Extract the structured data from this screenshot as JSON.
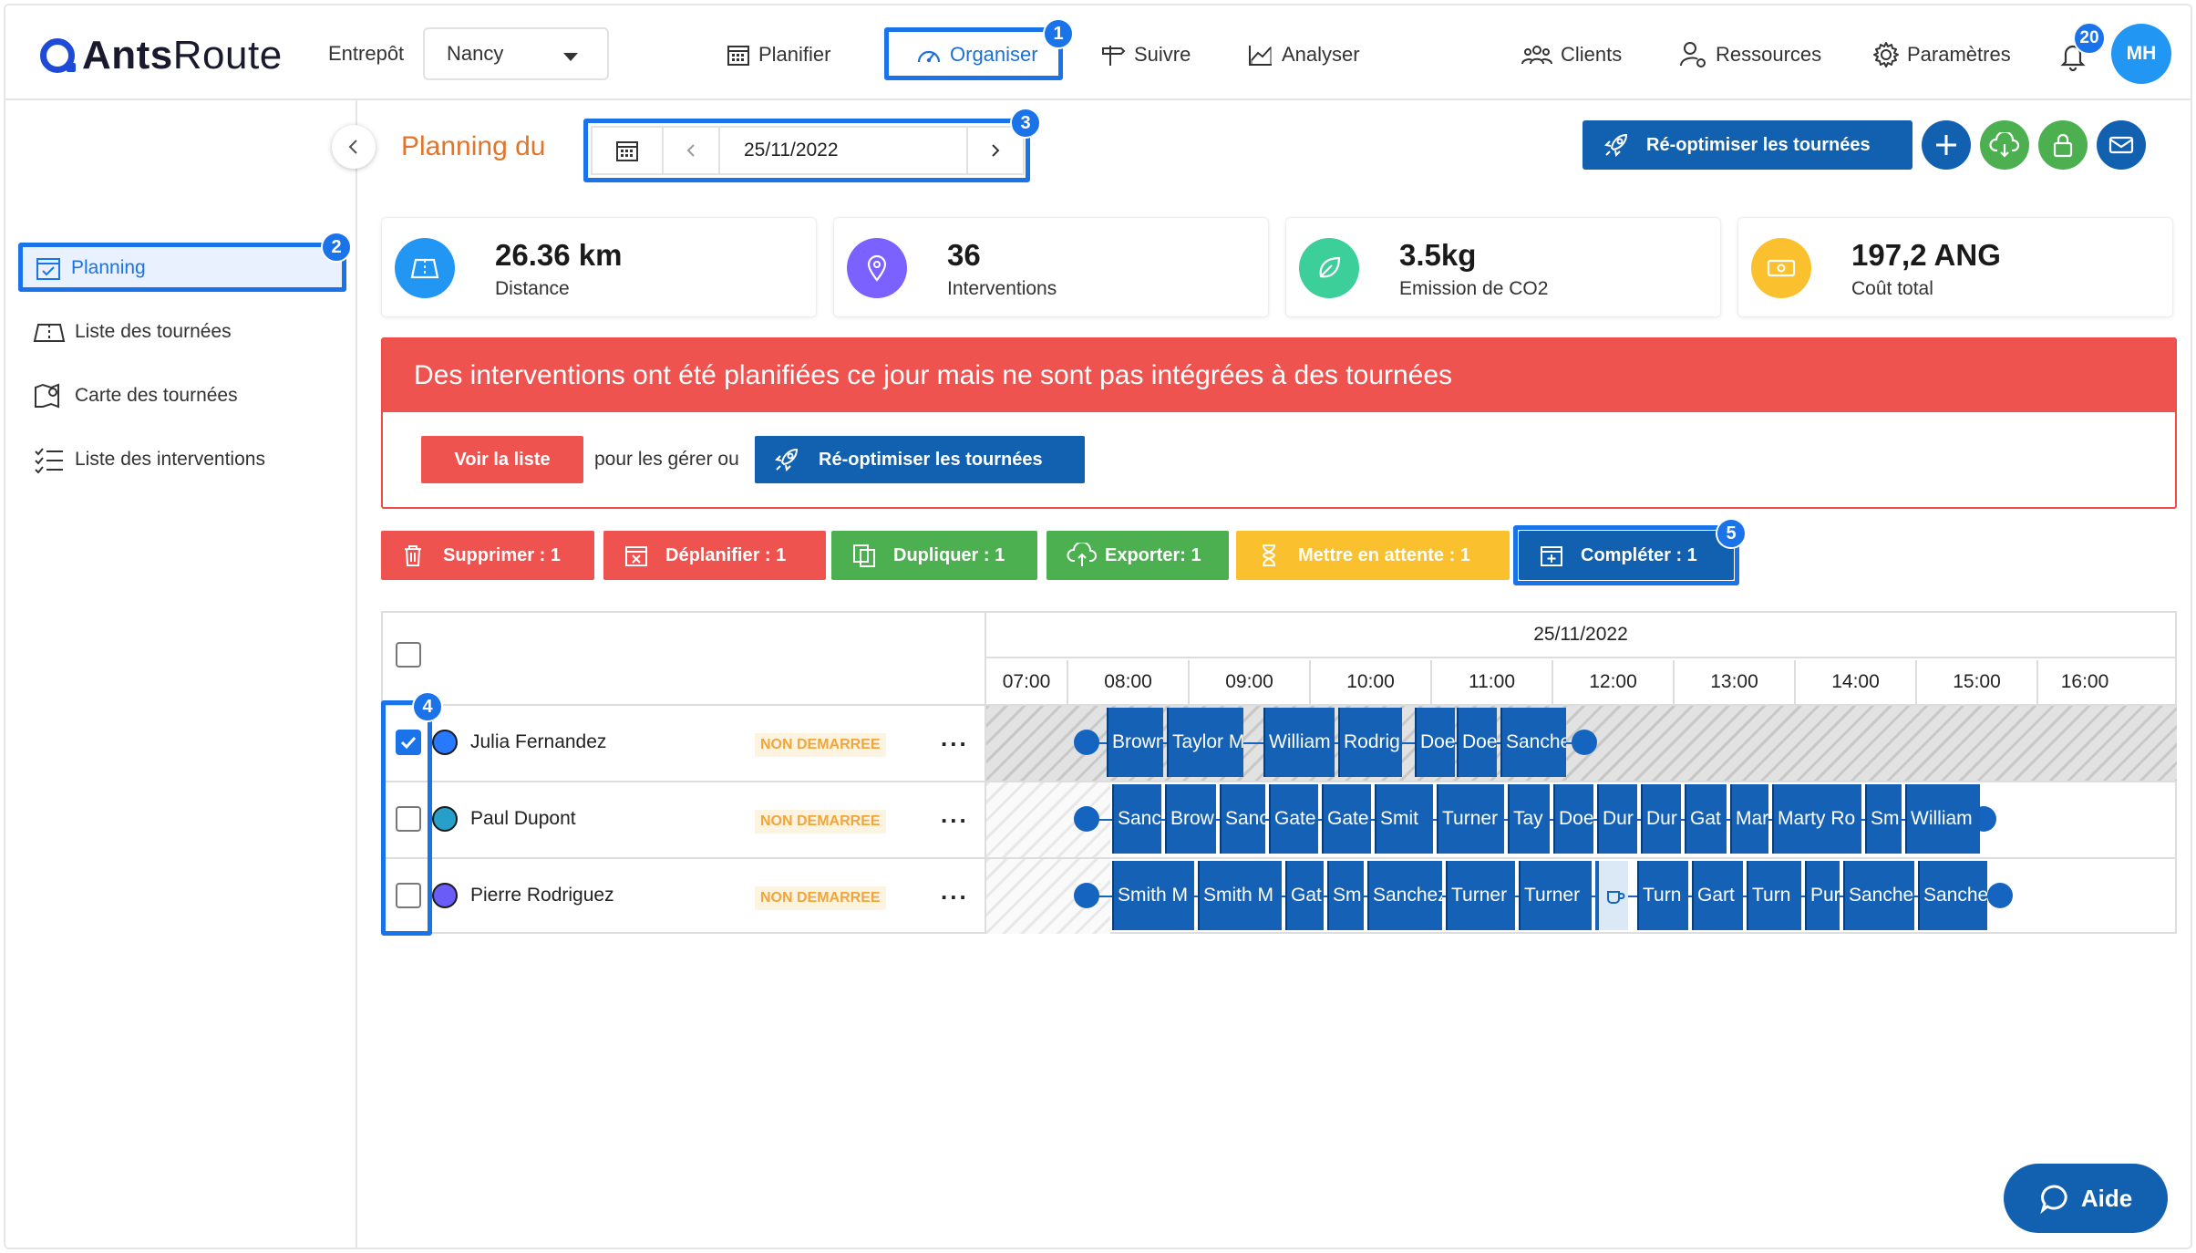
{
  "app": {
    "logo_bold": "Ants",
    "logo_light": "Route"
  },
  "header": {
    "warehouse_label": "Entrepôt",
    "warehouse_value": "Nancy",
    "nav": [
      "Planifier",
      "Organiser",
      "Suivre",
      "Analyser",
      "Clients",
      "Ressources",
      "Paramètres"
    ],
    "notifications": "20",
    "avatar": "MH"
  },
  "sidebar": {
    "items": [
      "Planning",
      "Liste des tournées",
      "Carte des tournées",
      "Liste des interventions"
    ]
  },
  "planning": {
    "title": "Planning du",
    "date": "25/11/2022",
    "reoptimize": "Ré-optimiser les tournées"
  },
  "stats": [
    {
      "value": "26.36 km",
      "label": "Distance",
      "color": "#2196f3"
    },
    {
      "value": "36",
      "label": "Interventions",
      "color": "#7b61ff"
    },
    {
      "value": "3.5kg",
      "label": "Emission de CO2",
      "color": "#3ccf9a"
    },
    {
      "value": "197,2 ANG",
      "label": "Coût total",
      "color": "#fbc02d"
    }
  ],
  "alert": {
    "message": "Des interventions ont été planifiées ce jour mais ne sont pas intégrées à des tournées",
    "list_button": "Voir la liste",
    "middle_text": "pour les gérer ou",
    "reoptimize": "Ré-optimiser les tournées"
  },
  "actions": [
    "Supprimer : 1",
    "Déplanifier : 1",
    "Dupliquer : 1",
    "Exporter: 1",
    "Mettre en attente : 1",
    "Compléter : 1"
  ],
  "colors": {
    "delete": "#ef5350",
    "unplan": "#ef5350",
    "duplicate": "#4caf50",
    "export": "#4caf50",
    "hold": "#fbc02d",
    "complete": "#1261b0",
    "highlight": "#1a73e8"
  },
  "annotations": [
    "1",
    "2",
    "3",
    "4",
    "5"
  ],
  "timeline": {
    "date": "25/11/2022",
    "hours": [
      "07:00",
      "08:00",
      "09:00",
      "10:00",
      "11:00",
      "12:00",
      "13:00",
      "14:00",
      "15:00",
      "16:00"
    ]
  },
  "resources": [
    {
      "name": "Julia Fernandez",
      "status": "NON DEMARREE",
      "color": "#2979ff",
      "checked": true,
      "tasks": [
        "Brown",
        "Taylor M",
        "William",
        "Rodrig",
        "Doe",
        "Doe",
        "Sanche"
      ]
    },
    {
      "name": "Paul Dupont",
      "status": "NON DEMARREE",
      "color": "#26a0c9",
      "checked": false,
      "tasks": [
        "Sanc",
        "Brow",
        "Sanc",
        "Gate",
        "Gate",
        "Smit",
        "Turner",
        "Tay",
        "Doe",
        "Dur",
        "Dur",
        "Gat",
        "Mar",
        "Marty Ro",
        "Sm",
        "William"
      ]
    },
    {
      "name": "Pierre Rodriguez",
      "status": "NON DEMARREE",
      "color": "#6a5cf6",
      "checked": false,
      "tasks": [
        "Smith M",
        "Smith M",
        "Gat",
        "Sm",
        "Sanchez",
        "Turner",
        "Turner",
        "",
        "Turn",
        "Gart",
        "Turn",
        "Pur",
        "Sanche",
        "Sanche"
      ]
    }
  ],
  "help": "Aide"
}
